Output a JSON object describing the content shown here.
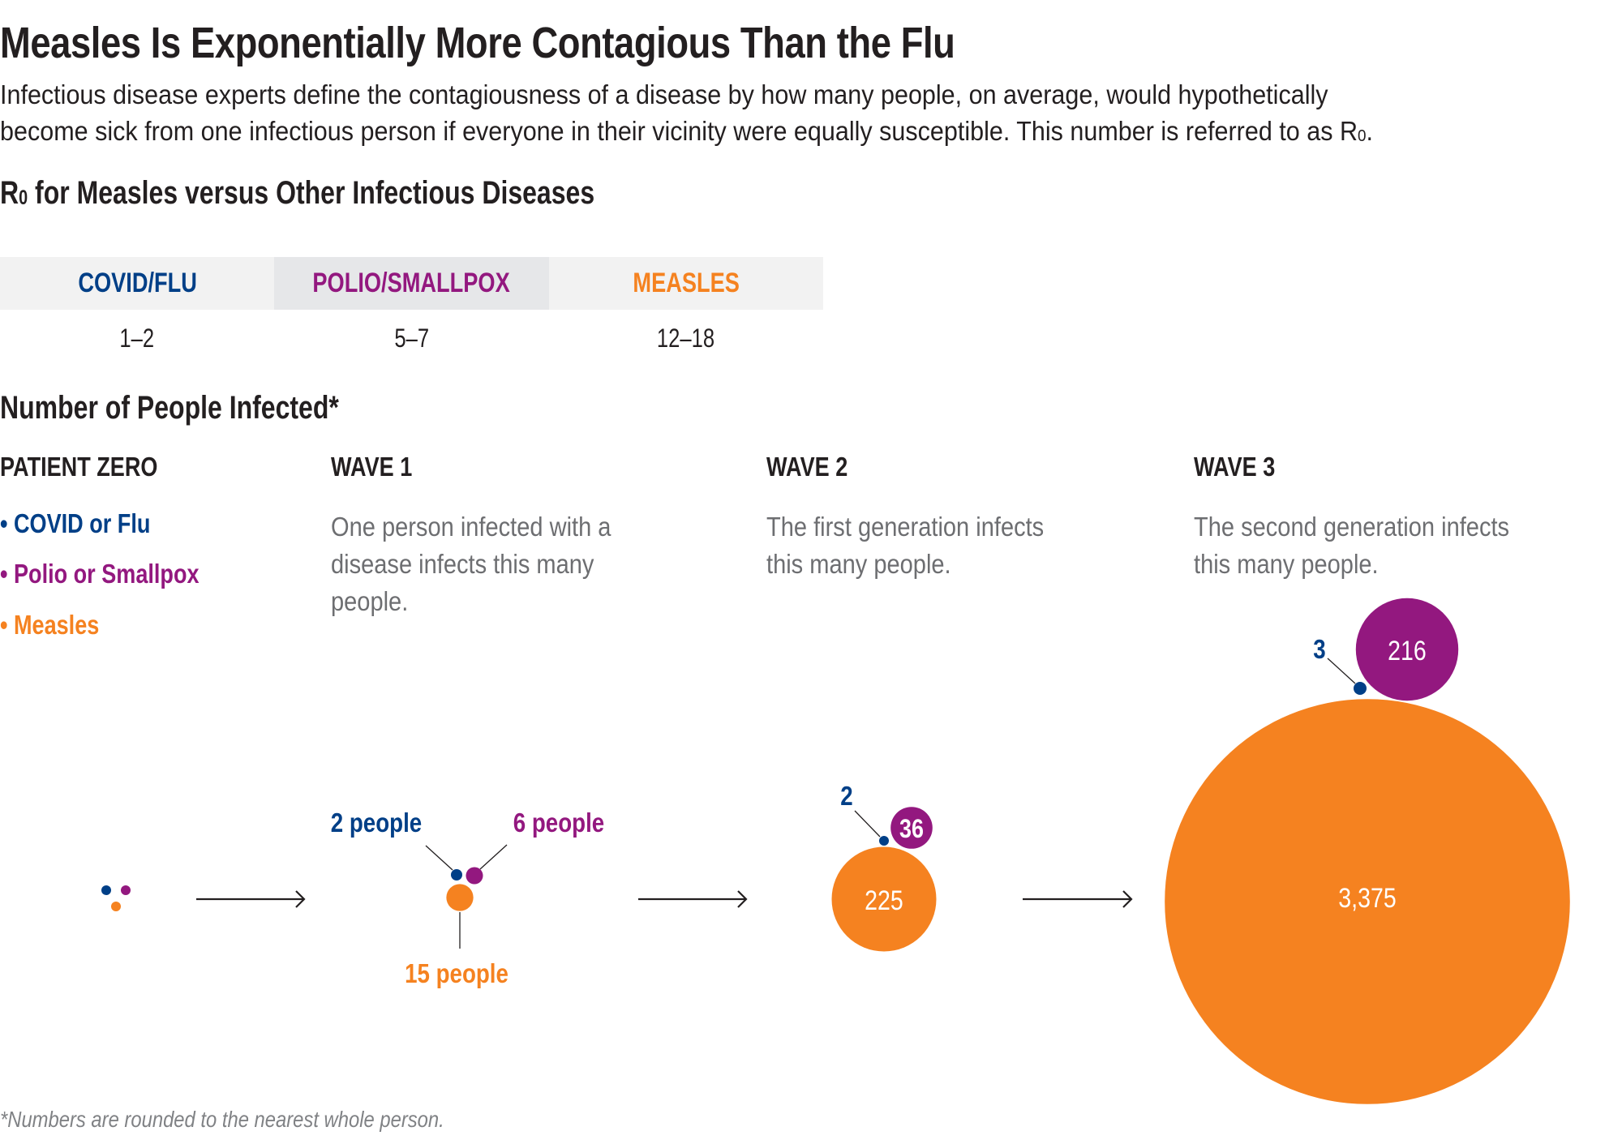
{
  "title": "Measles Is Exponentially More Contagious Than the Flu",
  "subtitle_lines": [
    "Infectious disease experts define the contagiousness of a disease by how many people, on average, would hypothetically",
    "become sick from one infectious person if everyone in their vicinity were equally susceptible. This number is referred to as R"
  ],
  "subtitle_r0_subscript": "0",
  "subtitle_end": ".",
  "r0_section": {
    "heading_prefix": "R",
    "heading_subscript": "0",
    "heading_rest": " for Measles versus Other Infectious Diseases",
    "columns": [
      {
        "label": "COVID/FLU",
        "value": "1–2"
      },
      {
        "label": "POLIO/SMALLPOX",
        "value": "5–7"
      },
      {
        "label": "MEASLES",
        "value": "12–18"
      }
    ]
  },
  "infected_section": {
    "heading": "Number of People Infected*",
    "columns": [
      {
        "header": "PATIENT ZERO"
      },
      {
        "header": "WAVE 1",
        "description": "One person infected with a\ndisease infects this many\npeople."
      },
      {
        "header": "WAVE 2",
        "description": "The first generation infects\nthis many people."
      },
      {
        "header": "WAVE 3",
        "description": "The second generation infects\nthis many people."
      }
    ],
    "legend": [
      {
        "label": "• COVID or Flu",
        "key": "covid"
      },
      {
        "label": "• Polio or Smallpox",
        "key": "polio"
      },
      {
        "label": "• Measles",
        "key": "measles"
      }
    ]
  },
  "colors": {
    "covid": "#003f87",
    "polio": "#93187f",
    "measles": "#f58220",
    "leader": "#231f20",
    "table_header_bg": "#f2f2f2",
    "table_header_bg_alt": "#e6e7e9",
    "description_text": "#6d6e71",
    "footnote_text": "#808285"
  },
  "chart_data": {
    "type": "bubble",
    "title": "Number of People Infected*",
    "stages": [
      "Patient Zero",
      "Wave 1",
      "Wave 2",
      "Wave 3"
    ],
    "series": [
      {
        "name": "COVID or Flu",
        "key": "covid",
        "values": [
          1,
          2,
          2,
          3
        ],
        "labels": [
          "",
          "2 people",
          "2",
          "3"
        ]
      },
      {
        "name": "Polio or Smallpox",
        "key": "polio",
        "values": [
          1,
          6,
          36,
          216
        ],
        "labels": [
          "",
          "6 people",
          "36",
          "216"
        ]
      },
      {
        "name": "Measles",
        "key": "measles",
        "values": [
          1,
          15,
          225,
          3375
        ],
        "labels": [
          "",
          "15 people",
          "225",
          "3,375"
        ]
      }
    ],
    "note": "*Numbers are rounded to the nearest whole person."
  },
  "footnote": "*Numbers are rounded to the nearest whole person."
}
